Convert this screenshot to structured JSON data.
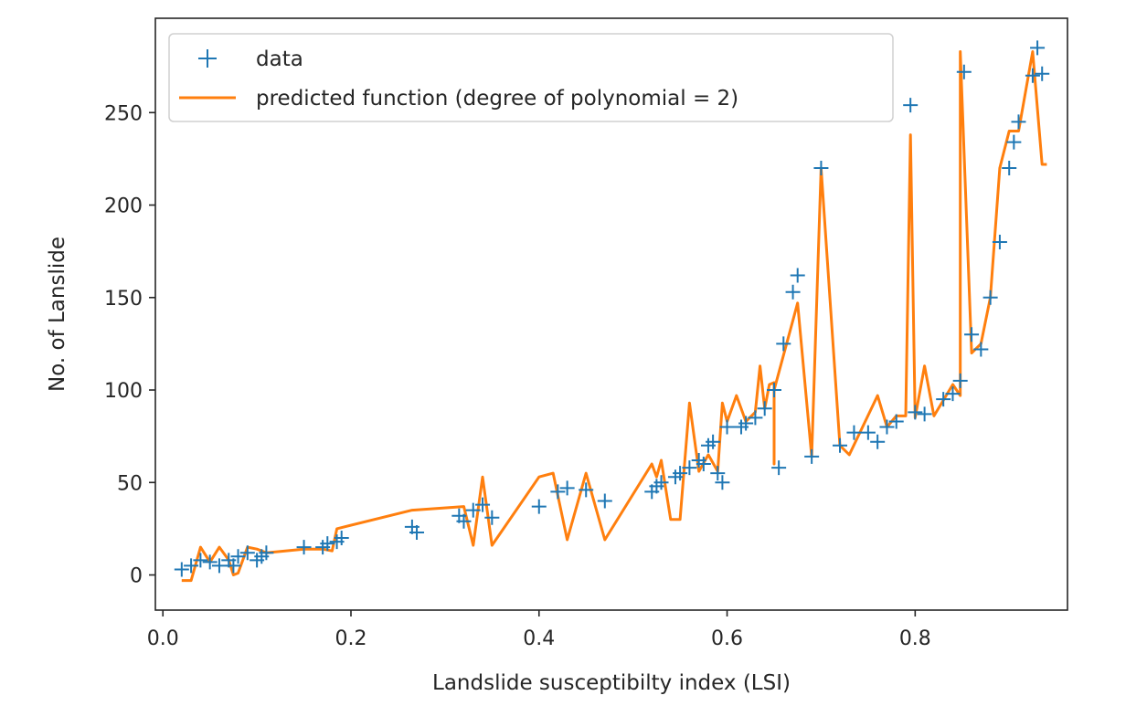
{
  "chart_data": {
    "type": "scatter",
    "xlabel": "Landslide susceptibilty index (LSI)",
    "ylabel": "No. of Lanslide",
    "xlim": [
      -0.008,
      0.962
    ],
    "ylim": [
      -19,
      301
    ],
    "xticks": [
      0.0,
      0.2,
      0.4,
      0.6,
      0.8
    ],
    "xtick_labels": [
      "0.0",
      "0.2",
      "0.4",
      "0.6",
      "0.8"
    ],
    "yticks": [
      0,
      50,
      100,
      150,
      200,
      250
    ],
    "ytick_labels": [
      "0",
      "50",
      "100",
      "150",
      "200",
      "250"
    ],
    "grid": false,
    "legend_position": "upper-left",
    "colors": {
      "data": "#1f77b4",
      "predicted": "#ff7f0e",
      "axes": "#262626"
    },
    "series": [
      {
        "name": "data",
        "kind": "scatter",
        "marker": "+",
        "points": [
          [
            0.02,
            3
          ],
          [
            0.03,
            5
          ],
          [
            0.04,
            8
          ],
          [
            0.05,
            7
          ],
          [
            0.06,
            5
          ],
          [
            0.07,
            8
          ],
          [
            0.075,
            5
          ],
          [
            0.08,
            10
          ],
          [
            0.09,
            12
          ],
          [
            0.1,
            8
          ],
          [
            0.105,
            10
          ],
          [
            0.11,
            12
          ],
          [
            0.15,
            15
          ],
          [
            0.17,
            15
          ],
          [
            0.175,
            17
          ],
          [
            0.185,
            18
          ],
          [
            0.19,
            20
          ],
          [
            0.265,
            26
          ],
          [
            0.27,
            23
          ],
          [
            0.315,
            32
          ],
          [
            0.32,
            29
          ],
          [
            0.33,
            35
          ],
          [
            0.34,
            38
          ],
          [
            0.35,
            31
          ],
          [
            0.4,
            37
          ],
          [
            0.42,
            45
          ],
          [
            0.43,
            47
          ],
          [
            0.45,
            46
          ],
          [
            0.47,
            40
          ],
          [
            0.52,
            45
          ],
          [
            0.525,
            48
          ],
          [
            0.53,
            50
          ],
          [
            0.545,
            53
          ],
          [
            0.55,
            55
          ],
          [
            0.56,
            58
          ],
          [
            0.57,
            62
          ],
          [
            0.575,
            60
          ],
          [
            0.58,
            70
          ],
          [
            0.585,
            72
          ],
          [
            0.59,
            55
          ],
          [
            0.595,
            50
          ],
          [
            0.6,
            80
          ],
          [
            0.615,
            80
          ],
          [
            0.62,
            82
          ],
          [
            0.63,
            85
          ],
          [
            0.64,
            90
          ],
          [
            0.65,
            100
          ],
          [
            0.655,
            58
          ],
          [
            0.66,
            125
          ],
          [
            0.67,
            153
          ],
          [
            0.675,
            162
          ],
          [
            0.69,
            64
          ],
          [
            0.7,
            220
          ],
          [
            0.72,
            70
          ],
          [
            0.735,
            77
          ],
          [
            0.75,
            77
          ],
          [
            0.76,
            72
          ],
          [
            0.77,
            80
          ],
          [
            0.78,
            83
          ],
          [
            0.795,
            254
          ],
          [
            0.8,
            88
          ],
          [
            0.81,
            87
          ],
          [
            0.83,
            95
          ],
          [
            0.84,
            98
          ],
          [
            0.848,
            105
          ],
          [
            0.852,
            272
          ],
          [
            0.86,
            130
          ],
          [
            0.87,
            122
          ],
          [
            0.88,
            150
          ],
          [
            0.89,
            180
          ],
          [
            0.9,
            220
          ],
          [
            0.905,
            234
          ],
          [
            0.91,
            245
          ],
          [
            0.925,
            270
          ],
          [
            0.93,
            285
          ],
          [
            0.935,
            271
          ]
        ]
      },
      {
        "name": "predicted function (degree of polynomial = 2)",
        "kind": "line",
        "points": [
          [
            0.02,
            -3
          ],
          [
            0.03,
            -3
          ],
          [
            0.04,
            15
          ],
          [
            0.05,
            7
          ],
          [
            0.06,
            15
          ],
          [
            0.07,
            8
          ],
          [
            0.075,
            0
          ],
          [
            0.08,
            1
          ],
          [
            0.09,
            15
          ],
          [
            0.1,
            14
          ],
          [
            0.11,
            12
          ],
          [
            0.15,
            14
          ],
          [
            0.17,
            14
          ],
          [
            0.18,
            13
          ],
          [
            0.185,
            25
          ],
          [
            0.265,
            35
          ],
          [
            0.32,
            37
          ],
          [
            0.33,
            16
          ],
          [
            0.34,
            53
          ],
          [
            0.35,
            16
          ],
          [
            0.4,
            53
          ],
          [
            0.415,
            55
          ],
          [
            0.43,
            19
          ],
          [
            0.45,
            55
          ],
          [
            0.47,
            19
          ],
          [
            0.52,
            60
          ],
          [
            0.525,
            53
          ],
          [
            0.53,
            62
          ],
          [
            0.54,
            30
          ],
          [
            0.55,
            30
          ],
          [
            0.56,
            93
          ],
          [
            0.57,
            56
          ],
          [
            0.58,
            65
          ],
          [
            0.59,
            56
          ],
          [
            0.595,
            93
          ],
          [
            0.6,
            83
          ],
          [
            0.61,
            97
          ],
          [
            0.62,
            83
          ],
          [
            0.63,
            88
          ],
          [
            0.635,
            113
          ],
          [
            0.64,
            90
          ],
          [
            0.645,
            103
          ],
          [
            0.65,
            104
          ],
          [
            0.65,
            60
          ],
          [
            0.65,
            100
          ],
          [
            0.675,
            147
          ],
          [
            0.69,
            64
          ],
          [
            0.7,
            220
          ],
          [
            0.72,
            70
          ],
          [
            0.73,
            65
          ],
          [
            0.76,
            97
          ],
          [
            0.77,
            80
          ],
          [
            0.78,
            86
          ],
          [
            0.79,
            86
          ],
          [
            0.795,
            238
          ],
          [
            0.8,
            85
          ],
          [
            0.81,
            113
          ],
          [
            0.82,
            86
          ],
          [
            0.84,
            103
          ],
          [
            0.848,
            97
          ],
          [
            0.848,
            283
          ],
          [
            0.86,
            120
          ],
          [
            0.87,
            125
          ],
          [
            0.88,
            150
          ],
          [
            0.89,
            220
          ],
          [
            0.9,
            240
          ],
          [
            0.91,
            240
          ],
          [
            0.925,
            283
          ],
          [
            0.935,
            222
          ],
          [
            0.94,
            222
          ]
        ]
      }
    ]
  }
}
